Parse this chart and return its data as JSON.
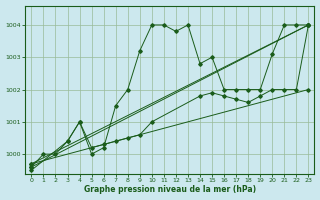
{
  "title": "Graphe pression niveau de la mer (hPa)",
  "bg_color": "#cce8ee",
  "grid_color": "#99bb99",
  "line_color": "#1a5c1a",
  "xlim": [
    -0.5,
    23.5
  ],
  "ylim": [
    999.4,
    1004.6
  ],
  "yticks": [
    1000,
    1001,
    1002,
    1003,
    1004
  ],
  "xticks": [
    0,
    1,
    2,
    3,
    4,
    5,
    6,
    7,
    8,
    9,
    10,
    11,
    12,
    13,
    14,
    15,
    16,
    17,
    18,
    19,
    20,
    21,
    22,
    23
  ],
  "series": [
    {
      "x": [
        0,
        1,
        2,
        3,
        4,
        5,
        6,
        7,
        8,
        9,
        10,
        11,
        12,
        13,
        14,
        15,
        16,
        17,
        18,
        19,
        20,
        21,
        22,
        23
      ],
      "y": [
        999.6,
        1000.0,
        1000.0,
        1000.4,
        1001.0,
        1000.0,
        1000.2,
        1001.5,
        1002.0,
        1003.2,
        1004.0,
        1004.0,
        1003.8,
        1004.0,
        1002.8,
        1003.0,
        1002.0,
        1002.0,
        1002.0,
        1002.0,
        1003.1,
        1004.0,
        1004.0,
        1004.0
      ]
    },
    {
      "x": [
        0,
        23
      ],
      "y": [
        999.6,
        1004.0
      ]
    },
    {
      "x": [
        0,
        23
      ],
      "y": [
        999.7,
        1002.0
      ]
    },
    {
      "x": [
        0,
        23
      ],
      "y": [
        999.7,
        1004.0
      ]
    },
    {
      "x": [
        0,
        3,
        4,
        5,
        6,
        7,
        8,
        9,
        10,
        14,
        15,
        16,
        17,
        18,
        19,
        20,
        21,
        22,
        23
      ],
      "y": [
        999.5,
        1000.4,
        1001.0,
        1000.2,
        1000.3,
        1000.4,
        1000.5,
        1000.6,
        1001.0,
        1001.8,
        1001.9,
        1001.8,
        1001.7,
        1001.6,
        1001.8,
        1002.0,
        1002.0,
        1002.0,
        1004.0
      ]
    }
  ]
}
